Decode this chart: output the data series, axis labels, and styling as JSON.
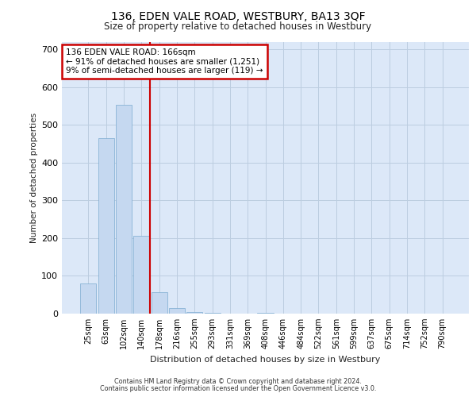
{
  "title": "136, EDEN VALE ROAD, WESTBURY, BA13 3QF",
  "subtitle": "Size of property relative to detached houses in Westbury",
  "xlabel": "Distribution of detached houses by size in Westbury",
  "ylabel": "Number of detached properties",
  "bar_labels": [
    "25sqm",
    "63sqm",
    "102sqm",
    "140sqm",
    "178sqm",
    "216sqm",
    "255sqm",
    "293sqm",
    "331sqm",
    "369sqm",
    "408sqm",
    "446sqm",
    "484sqm",
    "522sqm",
    "561sqm",
    "599sqm",
    "637sqm",
    "675sqm",
    "714sqm",
    "752sqm",
    "790sqm"
  ],
  "bar_values": [
    80,
    465,
    553,
    207,
    57,
    15,
    5,
    2,
    0,
    0,
    3,
    0,
    0,
    0,
    0,
    0,
    0,
    0,
    0,
    0,
    0
  ],
  "property_line_x": 3.5,
  "annotation_text": "136 EDEN VALE ROAD: 166sqm\n← 91% of detached houses are smaller (1,251)\n9% of semi-detached houses are larger (119) →",
  "bar_color": "#c5d8f0",
  "bar_edge_color": "#7aaad0",
  "line_color": "#cc0000",
  "annotation_edge_color": "#cc0000",
  "background_color": "#dce8f8",
  "grid_color": "#bccde0",
  "footer_line1": "Contains HM Land Registry data © Crown copyright and database right 2024.",
  "footer_line2": "Contains public sector information licensed under the Open Government Licence v3.0.",
  "ylim_max": 720,
  "yticks": [
    0,
    100,
    200,
    300,
    400,
    500,
    600,
    700
  ]
}
